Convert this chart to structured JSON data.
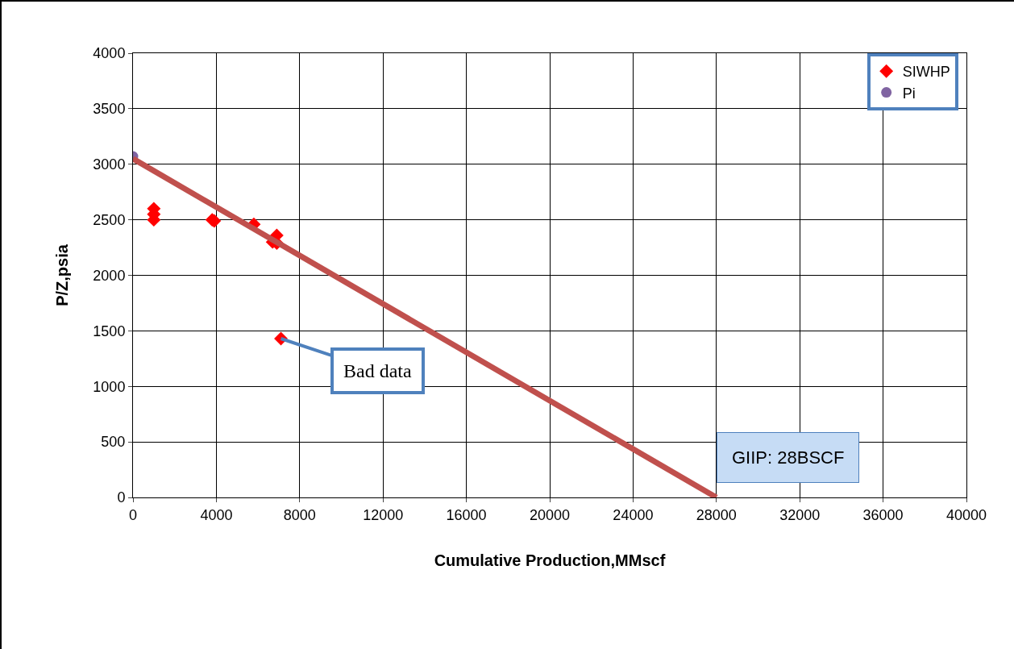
{
  "chart_data": {
    "type": "scatter",
    "xlabel": "Cumulative Production,MMscf",
    "ylabel": "P/Z,psia",
    "xlim": [
      0,
      40000
    ],
    "xticks": [
      0,
      4000,
      8000,
      12000,
      16000,
      20000,
      24000,
      28000,
      32000,
      36000,
      40000
    ],
    "ylim": [
      0,
      4000
    ],
    "yticks": [
      0,
      500,
      1000,
      1500,
      2000,
      2500,
      3000,
      3500,
      4000
    ],
    "grid": true,
    "legend": "top right",
    "series": [
      {
        "name": "SIWHP",
        "marker": "diamond",
        "color": "#ff0000",
        "x": [
          1000,
          1000,
          1000,
          3800,
          3900,
          5800,
          6900,
          6700,
          6900,
          7100
        ],
        "values": [
          2600,
          2550,
          2500,
          2500,
          2490,
          2460,
          2360,
          2300,
          2290,
          1430
        ]
      },
      {
        "name": "Pi",
        "marker": "circle",
        "color": "#8064a2",
        "x": [
          0
        ],
        "values": [
          3070
        ]
      },
      {
        "type": "line",
        "marker": "none",
        "color": "#c0504d",
        "x": [
          0,
          28000
        ],
        "values": [
          3050,
          0
        ]
      }
    ],
    "annotations": [
      {
        "text": "Bad data",
        "x": 7100,
        "y": 1430
      },
      {
        "text": "GIIP: 28BSCF",
        "x": 28000,
        "y": 0
      }
    ]
  }
}
